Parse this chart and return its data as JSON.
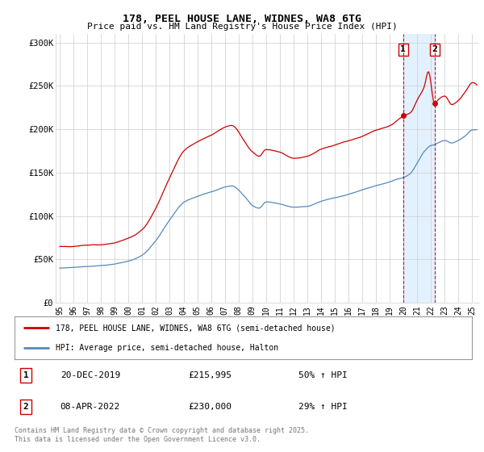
{
  "title1": "178, PEEL HOUSE LANE, WIDNES, WA8 6TG",
  "title2": "Price paid vs. HM Land Registry's House Price Index (HPI)",
  "ylabel_ticks": [
    "£0",
    "£50K",
    "£100K",
    "£150K",
    "£200K",
    "£250K",
    "£300K"
  ],
  "ytick_vals": [
    0,
    50000,
    100000,
    150000,
    200000,
    250000,
    300000
  ],
  "ylim": [
    0,
    310000
  ],
  "xlim_start": 1994.7,
  "xlim_end": 2025.5,
  "red_color": "#cc0000",
  "blue_color": "#5588bb",
  "shade_color": "#ddeeff",
  "marker1_date": 2019.97,
  "marker2_date": 2022.27,
  "marker1_price": 215995,
  "marker2_price": 230000,
  "legend_label1": "178, PEEL HOUSE LANE, WIDNES, WA8 6TG (semi-detached house)",
  "legend_label2": "HPI: Average price, semi-detached house, Halton",
  "sale1_date": "20-DEC-2019",
  "sale1_price": "£215,995",
  "sale1_hpi": "50% ↑ HPI",
  "sale2_date": "08-APR-2022",
  "sale2_price": "£230,000",
  "sale2_hpi": "29% ↑ HPI",
  "footnote": "Contains HM Land Registry data © Crown copyright and database right 2025.\nThis data is licensed under the Open Government Licence v3.0.",
  "bg_color": "#ffffff",
  "plot_bg_color": "#ffffff"
}
